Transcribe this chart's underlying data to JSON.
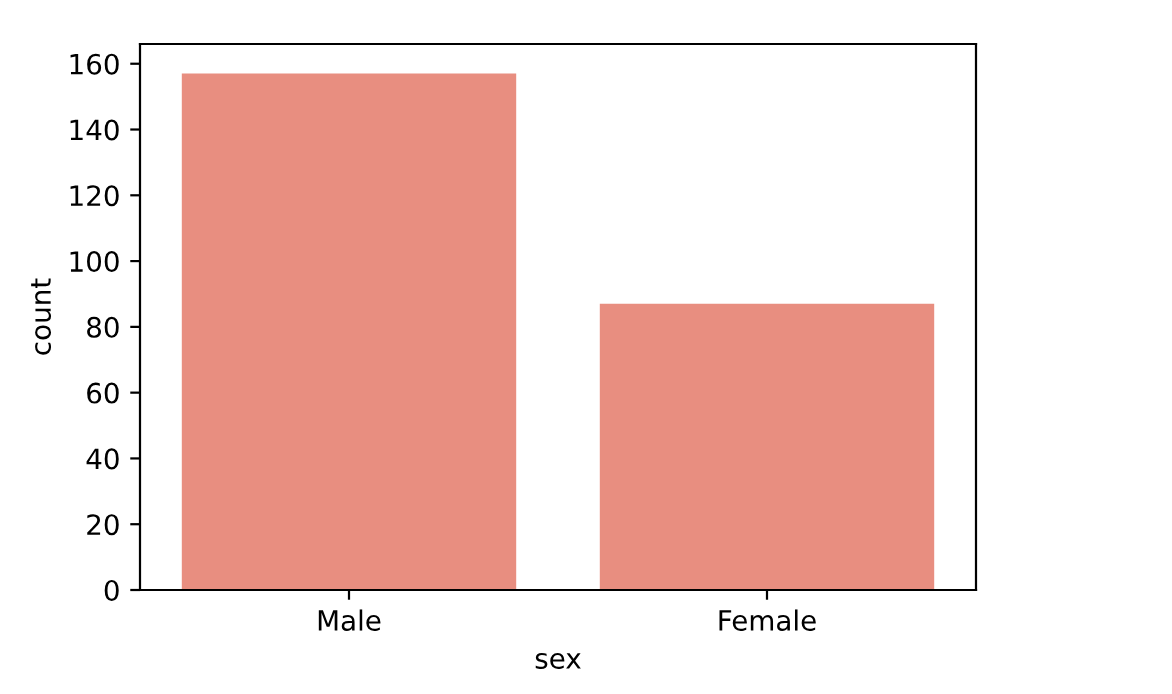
{
  "chart_data": {
    "type": "bar",
    "xlabel": "sex",
    "ylabel": "count",
    "categories": [
      "Male",
      "Female"
    ],
    "values": [
      157,
      87
    ],
    "color": "#e88e80",
    "ylim": [
      0,
      166
    ],
    "yticks": [
      0,
      20,
      40,
      60,
      80,
      100,
      120,
      140,
      160
    ],
    "grid": false
  }
}
